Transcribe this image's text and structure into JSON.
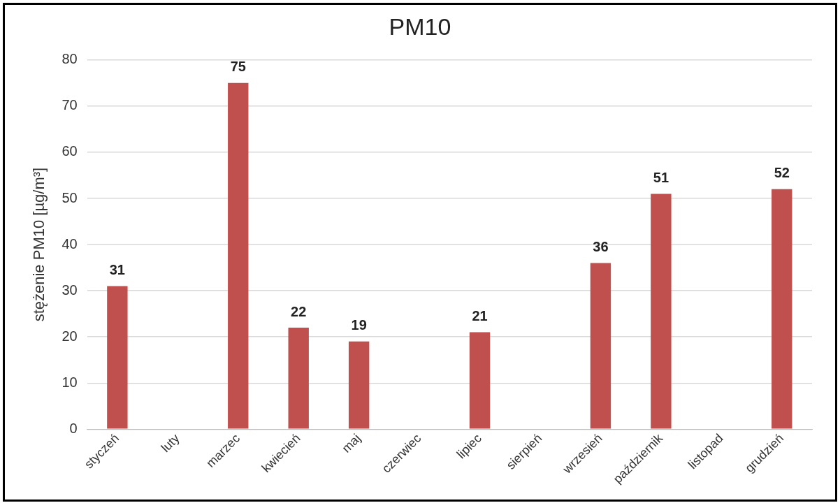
{
  "chart_data": {
    "type": "bar",
    "title": "PM10",
    "ylabel": "stężenie PM10 [µg/m³]",
    "categories": [
      "styczeń",
      "luty",
      "marzec",
      "kwiecień",
      "maj",
      "czerwiec",
      "lipiec",
      "sierpień",
      "wrzesień",
      "październik",
      "listopad",
      "grudzień"
    ],
    "values": [
      31,
      null,
      75,
      22,
      19,
      null,
      21,
      null,
      36,
      51,
      null,
      52
    ],
    "color": "#c0504d",
    "ylim": [
      0,
      80
    ],
    "yticks": [
      0,
      10,
      20,
      30,
      40,
      50,
      60,
      70,
      80
    ],
    "grid": "y",
    "legend": false,
    "data_labels": true
  }
}
